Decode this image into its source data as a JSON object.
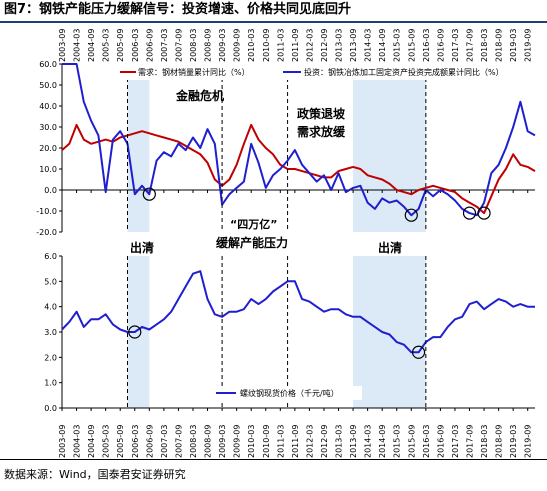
{
  "figure_title": "图7：钢铁产能压力缓解信号：投资增速、价格共同见底回升",
  "source": "数据来源：Wind，国泰君安证券研究",
  "x_ticks": [
    "2003-09",
    "2004-03",
    "2004-09",
    "2005-03",
    "2005-09",
    "2006-03",
    "2006-09",
    "2007-03",
    "2007-09",
    "2008-03",
    "2008-09",
    "2009-03",
    "2009-09",
    "2010-03",
    "2010-09",
    "2011-03",
    "2011-09",
    "2012-03",
    "2012-09",
    "2013-03",
    "2013-09",
    "2014-03",
    "2014-09",
    "2015-03",
    "2015-09",
    "2016-03",
    "2016-09",
    "2017-03",
    "2017-09",
    "2018-03",
    "2018-09",
    "2019-03",
    "2019-09"
  ],
  "annotations": {
    "crisis": "金融危机",
    "policy_1": "政策退坡",
    "policy_2": "需求放缓",
    "stimulus_1": "“四万亿”",
    "stimulus_2": "缓解产能压力",
    "clear_left": "出清",
    "clear_right": "出清"
  },
  "colors": {
    "red": "#c00000",
    "blue": "#1f1fd0",
    "shade": "#dce9f7",
    "axis": "#000000"
  },
  "chart_data": [
    {
      "type": "line",
      "ylim": [
        -20,
        60
      ],
      "yticks": [
        "-20.0",
        "-10.0",
        "0.0",
        "10.0",
        "20.0",
        "30.0",
        "40.0",
        "50.0",
        "60.0"
      ],
      "legend_position": "top",
      "series": [
        {
          "name": "需求：钢材销量累计同比（%）",
          "color": "#c00000",
          "points": [
            [
              "2003-09",
              19
            ],
            [
              "2003-12",
              22
            ],
            [
              "2004-03",
              31
            ],
            [
              "2004-06",
              24
            ],
            [
              "2004-09",
              22
            ],
            [
              "2004-12",
              23
            ],
            [
              "2005-03",
              24
            ],
            [
              "2005-06",
              23
            ],
            [
              "2005-09",
              25
            ],
            [
              "2005-12",
              26
            ],
            [
              "2006-03",
              27
            ],
            [
              "2006-06",
              28
            ],
            [
              "2006-09",
              27
            ],
            [
              "2006-12",
              26
            ],
            [
              "2007-03",
              25
            ],
            [
              "2007-06",
              24
            ],
            [
              "2007-09",
              23
            ],
            [
              "2007-12",
              21
            ],
            [
              "2008-03",
              19
            ],
            [
              "2008-06",
              17
            ],
            [
              "2008-09",
              13
            ],
            [
              "2008-12",
              5
            ],
            [
              "2009-03",
              2
            ],
            [
              "2009-06",
              5
            ],
            [
              "2009-09",
              12
            ],
            [
              "2009-12",
              22
            ],
            [
              "2010-03",
              31
            ],
            [
              "2010-06",
              24
            ],
            [
              "2010-09",
              20
            ],
            [
              "2010-12",
              17
            ],
            [
              "2011-03",
              12
            ],
            [
              "2011-06",
              10
            ],
            [
              "2011-09",
              10
            ],
            [
              "2011-12",
              9
            ],
            [
              "2012-03",
              8
            ],
            [
              "2012-06",
              7
            ],
            [
              "2012-09",
              6
            ],
            [
              "2012-12",
              6
            ],
            [
              "2013-03",
              9
            ],
            [
              "2013-06",
              10
            ],
            [
              "2013-09",
              11
            ],
            [
              "2013-12",
              10
            ],
            [
              "2014-03",
              7
            ],
            [
              "2014-06",
              6
            ],
            [
              "2014-09",
              5
            ],
            [
              "2014-12",
              3
            ],
            [
              "2015-03",
              0
            ],
            [
              "2015-06",
              -1
            ],
            [
              "2015-09",
              -2
            ],
            [
              "2015-12",
              0
            ],
            [
              "2016-03",
              1
            ],
            [
              "2016-06",
              2
            ],
            [
              "2016-09",
              1
            ],
            [
              "2016-12",
              0
            ],
            [
              "2017-03",
              -1
            ],
            [
              "2017-06",
              -4
            ],
            [
              "2017-09",
              -6
            ],
            [
              "2017-12",
              -8
            ],
            [
              "2018-03",
              -11
            ],
            [
              "2018-06",
              -3
            ],
            [
              "2018-09",
              5
            ],
            [
              "2018-12",
              10
            ],
            [
              "2019-03",
              17
            ],
            [
              "2019-06",
              12
            ],
            [
              "2019-09",
              11
            ],
            [
              "2019-12",
              9
            ]
          ]
        },
        {
          "name": "投资：钢铁冶炼加工固定资产投资完成额累计同比（%）",
          "color": "#1f1fd0",
          "points": [
            [
              "2003-09",
              60
            ],
            [
              "2004-03",
              60
            ],
            [
              "2004-06",
              42
            ],
            [
              "2004-09",
              33
            ],
            [
              "2004-12",
              26
            ],
            [
              "2005-03",
              -1
            ],
            [
              "2005-06",
              24
            ],
            [
              "2005-09",
              28
            ],
            [
              "2005-12",
              22
            ],
            [
              "2006-03",
              -2
            ],
            [
              "2006-06",
              2
            ],
            [
              "2006-09",
              -2
            ],
            [
              "2006-12",
              14
            ],
            [
              "2007-03",
              18
            ],
            [
              "2007-06",
              16
            ],
            [
              "2007-09",
              22
            ],
            [
              "2007-12",
              19
            ],
            [
              "2008-03",
              25
            ],
            [
              "2008-06",
              20
            ],
            [
              "2008-09",
              29
            ],
            [
              "2008-12",
              22
            ],
            [
              "2009-03",
              -7
            ],
            [
              "2009-06",
              -2
            ],
            [
              "2009-09",
              1
            ],
            [
              "2009-12",
              4
            ],
            [
              "2010-03",
              22
            ],
            [
              "2010-06",
              13
            ],
            [
              "2010-09",
              1
            ],
            [
              "2010-12",
              7
            ],
            [
              "2011-03",
              10
            ],
            [
              "2011-06",
              14
            ],
            [
              "2011-09",
              19
            ],
            [
              "2011-12",
              12
            ],
            [
              "2012-03",
              8
            ],
            [
              "2012-06",
              4
            ],
            [
              "2012-09",
              7
            ],
            [
              "2012-12",
              0
            ],
            [
              "2013-03",
              8
            ],
            [
              "2013-06",
              -1
            ],
            [
              "2013-09",
              1
            ],
            [
              "2013-12",
              2
            ],
            [
              "2014-03",
              -6
            ],
            [
              "2014-06",
              -9
            ],
            [
              "2014-09",
              -4
            ],
            [
              "2014-12",
              -6
            ],
            [
              "2015-03",
              -5
            ],
            [
              "2015-06",
              -8
            ],
            [
              "2015-09",
              -12
            ],
            [
              "2015-12",
              -9
            ],
            [
              "2016-03",
              0
            ],
            [
              "2016-06",
              -3
            ],
            [
              "2016-09",
              0
            ],
            [
              "2016-12",
              -2
            ],
            [
              "2017-03",
              -5
            ],
            [
              "2017-06",
              -9
            ],
            [
              "2017-09",
              -11
            ],
            [
              "2017-12",
              -12
            ],
            [
              "2018-03",
              -6
            ],
            [
              "2018-06",
              8
            ],
            [
              "2018-09",
              12
            ],
            [
              "2018-12",
              20
            ],
            [
              "2019-03",
              30
            ],
            [
              "2019-06",
              42
            ],
            [
              "2019-09",
              28
            ],
            [
              "2019-12",
              26
            ]
          ]
        }
      ]
    },
    {
      "type": "line",
      "ylim": [
        0,
        6
      ],
      "yticks": [
        "0.0",
        "1.0",
        "2.0",
        "3.0",
        "4.0",
        "5.0",
        "6.0"
      ],
      "legend_position": "bottom-center",
      "series": [
        {
          "name": "螺纹钢现货价格（千元/吨）",
          "color": "#1f1fd0",
          "points": [
            [
              "2003-09",
              3.1
            ],
            [
              "2003-12",
              3.4
            ],
            [
              "2004-03",
              3.8
            ],
            [
              "2004-06",
              3.2
            ],
            [
              "2004-09",
              3.5
            ],
            [
              "2004-12",
              3.5
            ],
            [
              "2005-03",
              3.7
            ],
            [
              "2005-06",
              3.3
            ],
            [
              "2005-09",
              3.1
            ],
            [
              "2005-12",
              3.0
            ],
            [
              "2006-03",
              3.0
            ],
            [
              "2006-06",
              3.2
            ],
            [
              "2006-09",
              3.1
            ],
            [
              "2006-12",
              3.3
            ],
            [
              "2007-03",
              3.5
            ],
            [
              "2007-06",
              3.8
            ],
            [
              "2007-09",
              4.3
            ],
            [
              "2007-12",
              4.8
            ],
            [
              "2008-03",
              5.3
            ],
            [
              "2008-06",
              5.4
            ],
            [
              "2008-09",
              4.3
            ],
            [
              "2008-12",
              3.7
            ],
            [
              "2009-03",
              3.6
            ],
            [
              "2009-06",
              3.8
            ],
            [
              "2009-09",
              3.8
            ],
            [
              "2009-12",
              3.9
            ],
            [
              "2010-03",
              4.3
            ],
            [
              "2010-06",
              4.1
            ],
            [
              "2010-09",
              4.3
            ],
            [
              "2010-12",
              4.6
            ],
            [
              "2011-03",
              4.8
            ],
            [
              "2011-06",
              5.0
            ],
            [
              "2011-09",
              5.0
            ],
            [
              "2011-12",
              4.3
            ],
            [
              "2012-03",
              4.2
            ],
            [
              "2012-06",
              4.0
            ],
            [
              "2012-09",
              3.8
            ],
            [
              "2012-12",
              3.9
            ],
            [
              "2013-03",
              3.9
            ],
            [
              "2013-06",
              3.7
            ],
            [
              "2013-09",
              3.6
            ],
            [
              "2013-12",
              3.6
            ],
            [
              "2014-03",
              3.4
            ],
            [
              "2014-06",
              3.2
            ],
            [
              "2014-09",
              3.0
            ],
            [
              "2014-12",
              2.9
            ],
            [
              "2015-03",
              2.6
            ],
            [
              "2015-06",
              2.5
            ],
            [
              "2015-09",
              2.2
            ],
            [
              "2015-12",
              2.2
            ],
            [
              "2016-03",
              2.6
            ],
            [
              "2016-06",
              2.8
            ],
            [
              "2016-09",
              2.8
            ],
            [
              "2016-12",
              3.2
            ],
            [
              "2017-03",
              3.5
            ],
            [
              "2017-06",
              3.6
            ],
            [
              "2017-09",
              4.1
            ],
            [
              "2017-12",
              4.2
            ],
            [
              "2018-03",
              3.9
            ],
            [
              "2018-06",
              4.1
            ],
            [
              "2018-09",
              4.3
            ],
            [
              "2018-12",
              4.2
            ],
            [
              "2019-03",
              4.0
            ],
            [
              "2019-06",
              4.1
            ],
            [
              "2019-09",
              4.0
            ],
            [
              "2019-12",
              4.0
            ]
          ]
        }
      ]
    }
  ]
}
